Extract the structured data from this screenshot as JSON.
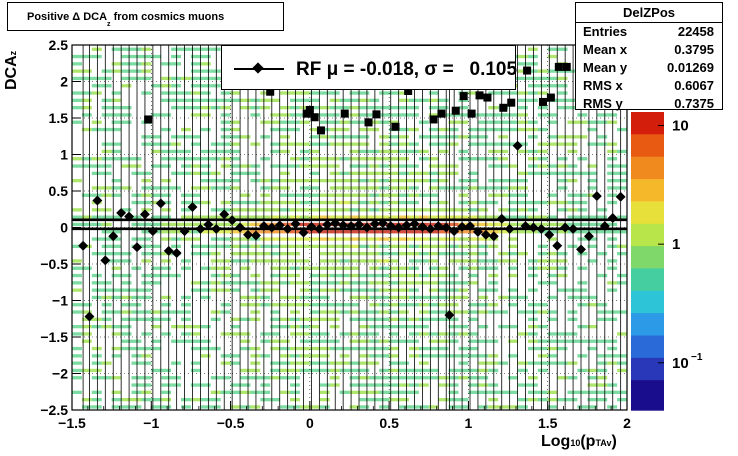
{
  "title": {
    "prefix": "Positive ",
    "delta": "Δ",
    "main": " DCA",
    "sub": "z",
    "suffix": " from cosmics muons"
  },
  "stats": {
    "title": "DelZPos",
    "rows": [
      {
        "k": "Entries",
        "v": "22458"
      },
      {
        "k": "Mean x",
        "v": "0.3795"
      },
      {
        "k": "Mean y",
        "v": "0.01269"
      },
      {
        "k": "RMS x",
        "v": "0.6067"
      },
      {
        "k": "RMS y",
        "v": "0.7375"
      }
    ]
  },
  "fit": {
    "label": "RF μ = -0.018, σ =   0.105"
  },
  "axes": {
    "xlabel_main": "Log",
    "xlabel_sub": "10",
    "xlabel_mid": "(p",
    "xlabel_sub2": "TAv",
    "xlabel_end": ")",
    "ylabel_main": "DCA",
    "ylabel_sub": "z"
  },
  "colors": {
    "frame": "#000000",
    "marker": "#000000",
    "palette_low": "#1a0d8c",
    "palette_high": "#d21e0a"
  },
  "chart_data": {
    "type": "heatmap",
    "xlim": [
      -1.5,
      2.0
    ],
    "ylim": [
      -2.5,
      2.5
    ],
    "log_z": true,
    "grid": true,
    "x_ticks": [
      -1.5,
      -1,
      -0.5,
      0,
      0.5,
      1,
      1.5,
      2
    ],
    "x_tick_labels": [
      "−1.5",
      "−1",
      "−0.5",
      "0",
      "0.5",
      "1",
      "1.5",
      "2"
    ],
    "y_ticks": [
      -2.5,
      -2,
      -1.5,
      -1,
      -0.5,
      0,
      0.5,
      1,
      1.5,
      2,
      2.5
    ],
    "y_tick_labels": [
      "−2.5",
      "−2",
      "−1.5",
      "−1",
      "−0.5",
      "0",
      "0.5",
      "1",
      "1.5",
      "2",
      "2.5"
    ],
    "z_tick_labels": [
      {
        "v": 10,
        "t": "10"
      },
      {
        "v": 1,
        "t": "1"
      },
      {
        "v": 0.1,
        "t": "10"
      }
    ],
    "z_exp_label": "−1",
    "ref_lines": [
      0.105,
      -0.018
    ],
    "series": [
      {
        "kind": "diamond",
        "x": [
          -1.43,
          -1.39,
          -1.34,
          -1.29,
          -1.24,
          -1.19,
          -1.14,
          -1.09,
          -1.04,
          -0.99,
          -0.94,
          -0.89,
          -0.84,
          -0.79,
          -0.74,
          -0.69,
          -0.64,
          -0.59,
          -0.54,
          -0.49,
          -0.44,
          -0.39,
          -0.34,
          -0.29,
          -0.24,
          -0.19,
          -0.14,
          -0.09,
          -0.04,
          0.01,
          0.06,
          0.11,
          0.16,
          0.21,
          0.26,
          0.31,
          0.36,
          0.41,
          0.46,
          0.51,
          0.56,
          0.61,
          0.66,
          0.71,
          0.76,
          0.81,
          0.86,
          0.88,
          0.91,
          0.96,
          1.01,
          1.06,
          1.11,
          1.16,
          1.21,
          1.26,
          1.31,
          1.36,
          1.41,
          1.46,
          1.51,
          1.56,
          1.61,
          1.66,
          1.71,
          1.76,
          1.81,
          1.86,
          1.91,
          1.96
        ],
        "y": [
          -0.25,
          -1.22,
          0.37,
          -0.45,
          -0.12,
          0.2,
          0.15,
          -0.27,
          0.18,
          -0.05,
          0.33,
          -0.32,
          -0.35,
          -0.05,
          0.28,
          -0.02,
          0.04,
          -0.02,
          0.18,
          0.1,
          0.0,
          -0.1,
          -0.11,
          0.02,
          0.0,
          0.03,
          -0.02,
          0.05,
          -0.07,
          0.01,
          -0.02,
          0.04,
          0.06,
          0.03,
          0.02,
          0.04,
          0.0,
          0.05,
          0.06,
          0.02,
          0.0,
          0.03,
          0.05,
          0.01,
          -0.02,
          0.02,
          0.0,
          -1.2,
          -0.05,
          0.01,
          0.02,
          -0.06,
          -0.1,
          -0.12,
          0.12,
          -0.02,
          1.12,
          0.02,
          0.0,
          -0.02,
          -0.1,
          -0.25,
          0.0,
          -0.02,
          -0.3,
          -0.12,
          0.43,
          0.02,
          0.13,
          0.42
        ]
      },
      {
        "kind": "square",
        "x": [
          -1.02,
          -0.25,
          -0.02,
          0.0,
          0.03,
          0.07,
          0.22,
          0.37,
          0.42,
          0.54,
          0.62,
          0.78,
          0.83,
          0.92,
          0.97,
          1.02,
          1.07,
          1.12,
          1.22,
          1.27,
          1.37,
          1.47,
          1.52,
          1.57,
          1.62,
          1.72,
          1.82,
          1.92,
          1.97
        ],
        "y": [
          1.48,
          1.86,
          1.56,
          1.61,
          1.51,
          1.33,
          1.56,
          1.44,
          1.55,
          1.38,
          1.87,
          1.48,
          1.56,
          1.6,
          1.8,
          1.56,
          1.81,
          1.78,
          1.64,
          1.71,
          2.15,
          1.72,
          1.78,
          2.2,
          2.2,
          2.04,
          2.44,
          2.27,
          2.0
        ]
      }
    ]
  }
}
